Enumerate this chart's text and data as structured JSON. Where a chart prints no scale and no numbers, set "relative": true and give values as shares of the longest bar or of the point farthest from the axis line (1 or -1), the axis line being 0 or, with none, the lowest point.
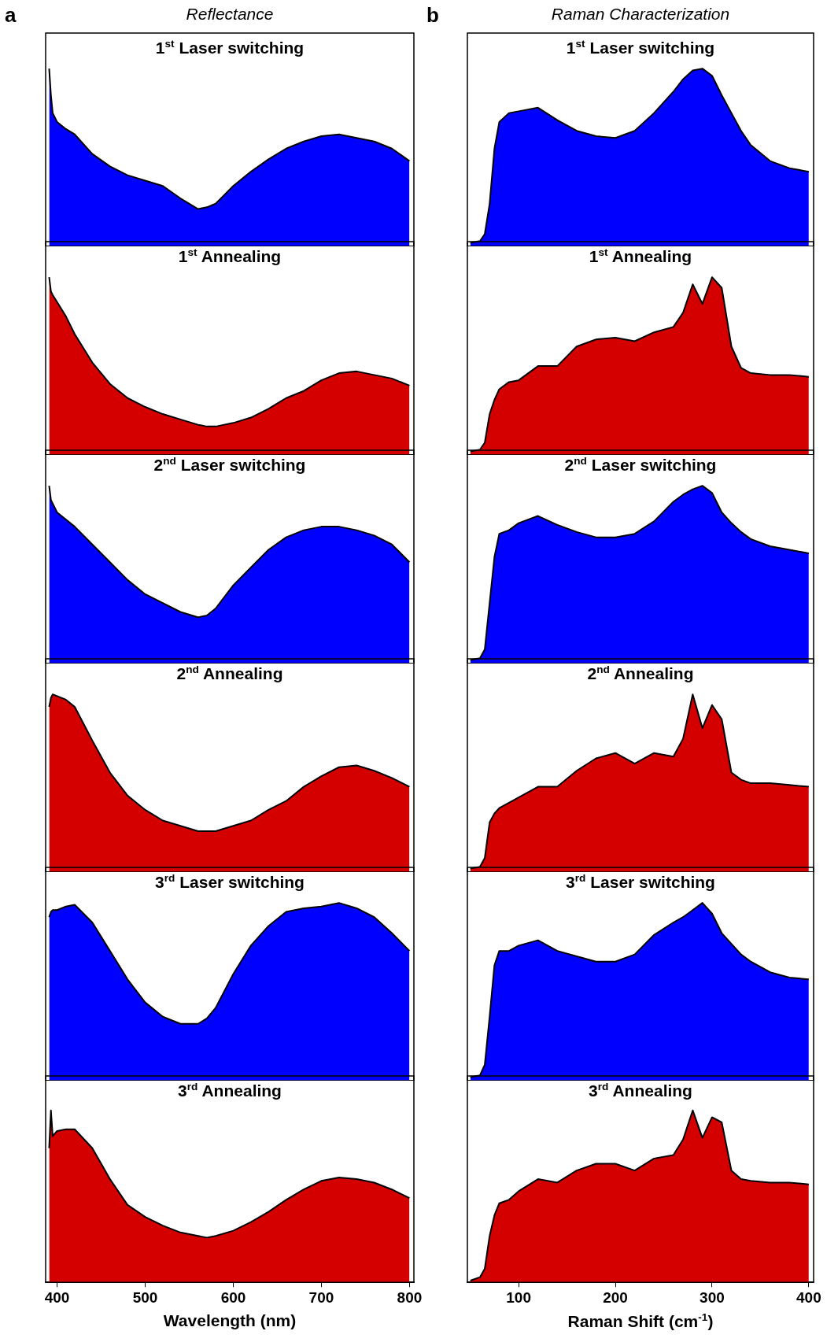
{
  "chart_data": [
    {
      "type": "area",
      "title": "1$^{st}$ Laser switching",
      "annotations": [
        "a",
        "Reflectance"
      ],
      "relative": true,
      "tick_labels": false,
      "xlim": [
        387,
        805
      ],
      "xticks": [
        400,
        500,
        600,
        700,
        800
      ],
      "x": [
        391,
        393,
        395,
        400,
        410,
        420,
        440,
        460,
        480,
        500,
        520,
        540,
        560,
        570,
        580,
        600,
        620,
        640,
        660,
        680,
        700,
        720,
        740,
        760,
        780,
        800
      ],
      "series": [
        {
          "color": "#0000ff",
          "values": [
            1.0,
            0.85,
            0.75,
            0.7,
            0.66,
            0.63,
            0.52,
            0.45,
            0.4,
            0.37,
            0.34,
            0.27,
            0.21,
            0.22,
            0.24,
            0.34,
            0.42,
            0.49,
            0.55,
            0.59,
            0.62,
            0.63,
            0.61,
            0.59,
            0.55,
            0.48
          ]
        }
      ]
    },
    {
      "type": "area",
      "title": "1$^{st}$ Annealing",
      "relative": true,
      "tick_labels": false,
      "xlim": [
        387,
        805
      ],
      "xticks": [
        400,
        500,
        600,
        700,
        800
      ],
      "x": [
        391,
        393,
        395,
        400,
        410,
        420,
        440,
        460,
        480,
        500,
        520,
        540,
        560,
        570,
        580,
        600,
        620,
        640,
        660,
        680,
        700,
        720,
        740,
        760,
        780,
        800
      ],
      "series": [
        {
          "color": "#d40000",
          "values": [
            1.0,
            0.92,
            0.9,
            0.86,
            0.78,
            0.68,
            0.52,
            0.4,
            0.32,
            0.27,
            0.23,
            0.2,
            0.17,
            0.16,
            0.16,
            0.18,
            0.21,
            0.26,
            0.32,
            0.36,
            0.42,
            0.46,
            0.47,
            0.45,
            0.43,
            0.39
          ]
        }
      ]
    },
    {
      "type": "area",
      "title": "2$^{nd}$ Laser switching",
      "relative": true,
      "tick_labels": false,
      "xlim": [
        387,
        805
      ],
      "xticks": [
        400,
        500,
        600,
        700,
        800
      ],
      "x": [
        391,
        393,
        395,
        400,
        410,
        420,
        440,
        460,
        480,
        500,
        520,
        540,
        560,
        570,
        580,
        600,
        620,
        640,
        660,
        680,
        700,
        720,
        740,
        760,
        780,
        800
      ],
      "series": [
        {
          "color": "#0000ff",
          "values": [
            1.0,
            0.92,
            0.9,
            0.85,
            0.81,
            0.77,
            0.67,
            0.57,
            0.47,
            0.39,
            0.34,
            0.29,
            0.26,
            0.27,
            0.31,
            0.44,
            0.54,
            0.64,
            0.71,
            0.75,
            0.77,
            0.77,
            0.75,
            0.72,
            0.67,
            0.57
          ]
        }
      ]
    },
    {
      "type": "area",
      "title": "2$^{nd}$ Annealing",
      "relative": true,
      "tick_labels": false,
      "xlim": [
        387,
        805
      ],
      "xticks": [
        400,
        500,
        600,
        700,
        800
      ],
      "x": [
        391,
        393,
        395,
        400,
        410,
        420,
        440,
        460,
        480,
        500,
        520,
        540,
        560,
        570,
        580,
        600,
        620,
        640,
        660,
        680,
        700,
        720,
        740,
        760,
        780,
        800
      ],
      "series": [
        {
          "color": "#d40000",
          "values": [
            0.93,
            0.98,
            1.0,
            0.99,
            0.97,
            0.93,
            0.74,
            0.56,
            0.43,
            0.35,
            0.29,
            0.26,
            0.23,
            0.23,
            0.23,
            0.26,
            0.29,
            0.35,
            0.4,
            0.48,
            0.54,
            0.59,
            0.6,
            0.57,
            0.53,
            0.48
          ]
        }
      ]
    },
    {
      "type": "area",
      "title": "3$^{rd}$ Laser switching",
      "relative": true,
      "tick_labels": false,
      "xlim": [
        387,
        805
      ],
      "xticks": [
        400,
        500,
        600,
        700,
        800
      ],
      "x": [
        391,
        393,
        395,
        400,
        410,
        420,
        440,
        460,
        480,
        500,
        520,
        540,
        560,
        570,
        580,
        600,
        620,
        640,
        660,
        680,
        700,
        720,
        740,
        760,
        780,
        800
      ],
      "series": [
        {
          "color": "#0000ff",
          "values": [
            0.92,
            0.95,
            0.96,
            0.96,
            0.98,
            0.99,
            0.89,
            0.73,
            0.57,
            0.44,
            0.36,
            0.32,
            0.32,
            0.35,
            0.41,
            0.6,
            0.76,
            0.87,
            0.95,
            0.97,
            0.98,
            1.0,
            0.97,
            0.92,
            0.83,
            0.73
          ]
        }
      ]
    },
    {
      "type": "area",
      "title": "3$^{rd}$ Annealing",
      "xlabel": "Wavelength (nm)",
      "relative": true,
      "tick_labels": "x",
      "xlim": [
        387,
        805
      ],
      "xticks": [
        400,
        500,
        600,
        700,
        800
      ],
      "x": [
        391,
        393,
        395,
        400,
        410,
        420,
        440,
        460,
        480,
        500,
        520,
        540,
        560,
        570,
        580,
        600,
        620,
        640,
        660,
        680,
        700,
        720,
        740,
        760,
        780,
        800
      ],
      "series": [
        {
          "color": "#d40000",
          "values": [
            0.78,
            1.0,
            0.85,
            0.88,
            0.89,
            0.89,
            0.78,
            0.6,
            0.45,
            0.38,
            0.33,
            0.29,
            0.27,
            0.26,
            0.27,
            0.3,
            0.35,
            0.41,
            0.48,
            0.54,
            0.59,
            0.61,
            0.6,
            0.58,
            0.54,
            0.49
          ]
        }
      ]
    },
    {
      "type": "area",
      "title": "1$^{st}$ Laser switching",
      "annotations": [
        "b",
        "Raman Characterization"
      ],
      "relative": true,
      "tick_labels": false,
      "xlim": [
        47,
        405
      ],
      "xticks": [
        100,
        200,
        300,
        400
      ],
      "x": [
        50,
        60,
        65,
        70,
        75,
        80,
        90,
        100,
        120,
        140,
        160,
        180,
        200,
        220,
        240,
        260,
        270,
        280,
        290,
        300,
        310,
        320,
        330,
        340,
        360,
        380,
        400
      ],
      "series": [
        {
          "color": "#0000ff",
          "values": [
            0.02,
            0.03,
            0.07,
            0.24,
            0.55,
            0.7,
            0.75,
            0.76,
            0.78,
            0.71,
            0.65,
            0.62,
            0.61,
            0.65,
            0.75,
            0.87,
            0.94,
            0.99,
            1.0,
            0.96,
            0.85,
            0.75,
            0.65,
            0.57,
            0.48,
            0.44,
            0.42
          ]
        }
      ]
    },
    {
      "type": "area",
      "title": "1$^{st}$ Annealing",
      "relative": true,
      "tick_labels": false,
      "xlim": [
        47,
        405
      ],
      "xticks": [
        100,
        200,
        300,
        400
      ],
      "x": [
        50,
        60,
        65,
        70,
        75,
        80,
        90,
        100,
        120,
        140,
        160,
        180,
        200,
        220,
        240,
        260,
        270,
        280,
        290,
        300,
        310,
        320,
        330,
        340,
        360,
        380,
        400
      ],
      "series": [
        {
          "color": "#d40000",
          "values": [
            0.02,
            0.03,
            0.07,
            0.23,
            0.31,
            0.37,
            0.41,
            0.42,
            0.5,
            0.5,
            0.61,
            0.65,
            0.66,
            0.64,
            0.69,
            0.72,
            0.8,
            0.96,
            0.85,
            1.0,
            0.94,
            0.61,
            0.49,
            0.46,
            0.45,
            0.45,
            0.44
          ]
        }
      ]
    },
    {
      "type": "area",
      "title": "2$^{nd}$ Laser switching",
      "relative": true,
      "tick_labels": false,
      "xlim": [
        47,
        405
      ],
      "xticks": [
        100,
        200,
        300,
        400
      ],
      "x": [
        50,
        60,
        65,
        70,
        75,
        80,
        90,
        100,
        120,
        140,
        160,
        180,
        200,
        220,
        240,
        260,
        270,
        280,
        290,
        300,
        310,
        320,
        330,
        340,
        360,
        380,
        400
      ],
      "series": [
        {
          "color": "#0000ff",
          "values": [
            0.02,
            0.03,
            0.08,
            0.34,
            0.6,
            0.73,
            0.75,
            0.79,
            0.83,
            0.78,
            0.74,
            0.71,
            0.71,
            0.73,
            0.8,
            0.91,
            0.95,
            0.98,
            1.0,
            0.96,
            0.85,
            0.79,
            0.74,
            0.7,
            0.66,
            0.64,
            0.62
          ]
        }
      ]
    },
    {
      "type": "area",
      "title": "2$^{nd}$ Annealing",
      "relative": true,
      "tick_labels": false,
      "xlim": [
        47,
        405
      ],
      "xticks": [
        100,
        200,
        300,
        400
      ],
      "x": [
        50,
        60,
        65,
        70,
        75,
        80,
        90,
        100,
        120,
        140,
        160,
        180,
        200,
        220,
        240,
        260,
        270,
        280,
        290,
        300,
        310,
        320,
        330,
        340,
        360,
        380,
        400
      ],
      "series": [
        {
          "color": "#d40000",
          "values": [
            0.02,
            0.03,
            0.08,
            0.28,
            0.33,
            0.36,
            0.39,
            0.42,
            0.48,
            0.48,
            0.57,
            0.64,
            0.67,
            0.61,
            0.67,
            0.65,
            0.75,
            1.0,
            0.81,
            0.94,
            0.86,
            0.56,
            0.52,
            0.5,
            0.5,
            0.49,
            0.48
          ]
        }
      ]
    },
    {
      "type": "area",
      "title": "3$^{rd}$ Laser switching",
      "relative": true,
      "tick_labels": false,
      "xlim": [
        47,
        405
      ],
      "xticks": [
        100,
        200,
        300,
        400
      ],
      "x": [
        50,
        60,
        65,
        70,
        75,
        80,
        90,
        100,
        120,
        140,
        160,
        180,
        200,
        220,
        240,
        260,
        270,
        280,
        290,
        300,
        310,
        320,
        330,
        340,
        360,
        380,
        400
      ],
      "series": [
        {
          "color": "#0000ff",
          "values": [
            0.02,
            0.03,
            0.09,
            0.36,
            0.65,
            0.73,
            0.73,
            0.76,
            0.79,
            0.73,
            0.7,
            0.67,
            0.67,
            0.71,
            0.82,
            0.89,
            0.92,
            0.96,
            1.0,
            0.94,
            0.83,
            0.77,
            0.71,
            0.67,
            0.61,
            0.58,
            0.57
          ]
        }
      ]
    },
    {
      "type": "area",
      "title": "3$^{rd}$ Annealing",
      "xlabel": "Raman Shift (cm$^{-1}$)",
      "relative": true,
      "tick_labels": "x",
      "xlim": [
        47,
        405
      ],
      "xticks": [
        100,
        200,
        300,
        400
      ],
      "x": [
        50,
        60,
        65,
        70,
        75,
        80,
        90,
        100,
        120,
        140,
        160,
        180,
        200,
        220,
        240,
        260,
        270,
        280,
        290,
        300,
        310,
        320,
        330,
        340,
        360,
        380,
        400
      ],
      "series": [
        {
          "color": "#d40000",
          "values": [
            0.01,
            0.03,
            0.08,
            0.27,
            0.39,
            0.46,
            0.48,
            0.53,
            0.6,
            0.58,
            0.65,
            0.69,
            0.69,
            0.65,
            0.72,
            0.74,
            0.83,
            1.0,
            0.84,
            0.96,
            0.93,
            0.65,
            0.6,
            0.59,
            0.58,
            0.58,
            0.57
          ]
        }
      ]
    }
  ]
}
